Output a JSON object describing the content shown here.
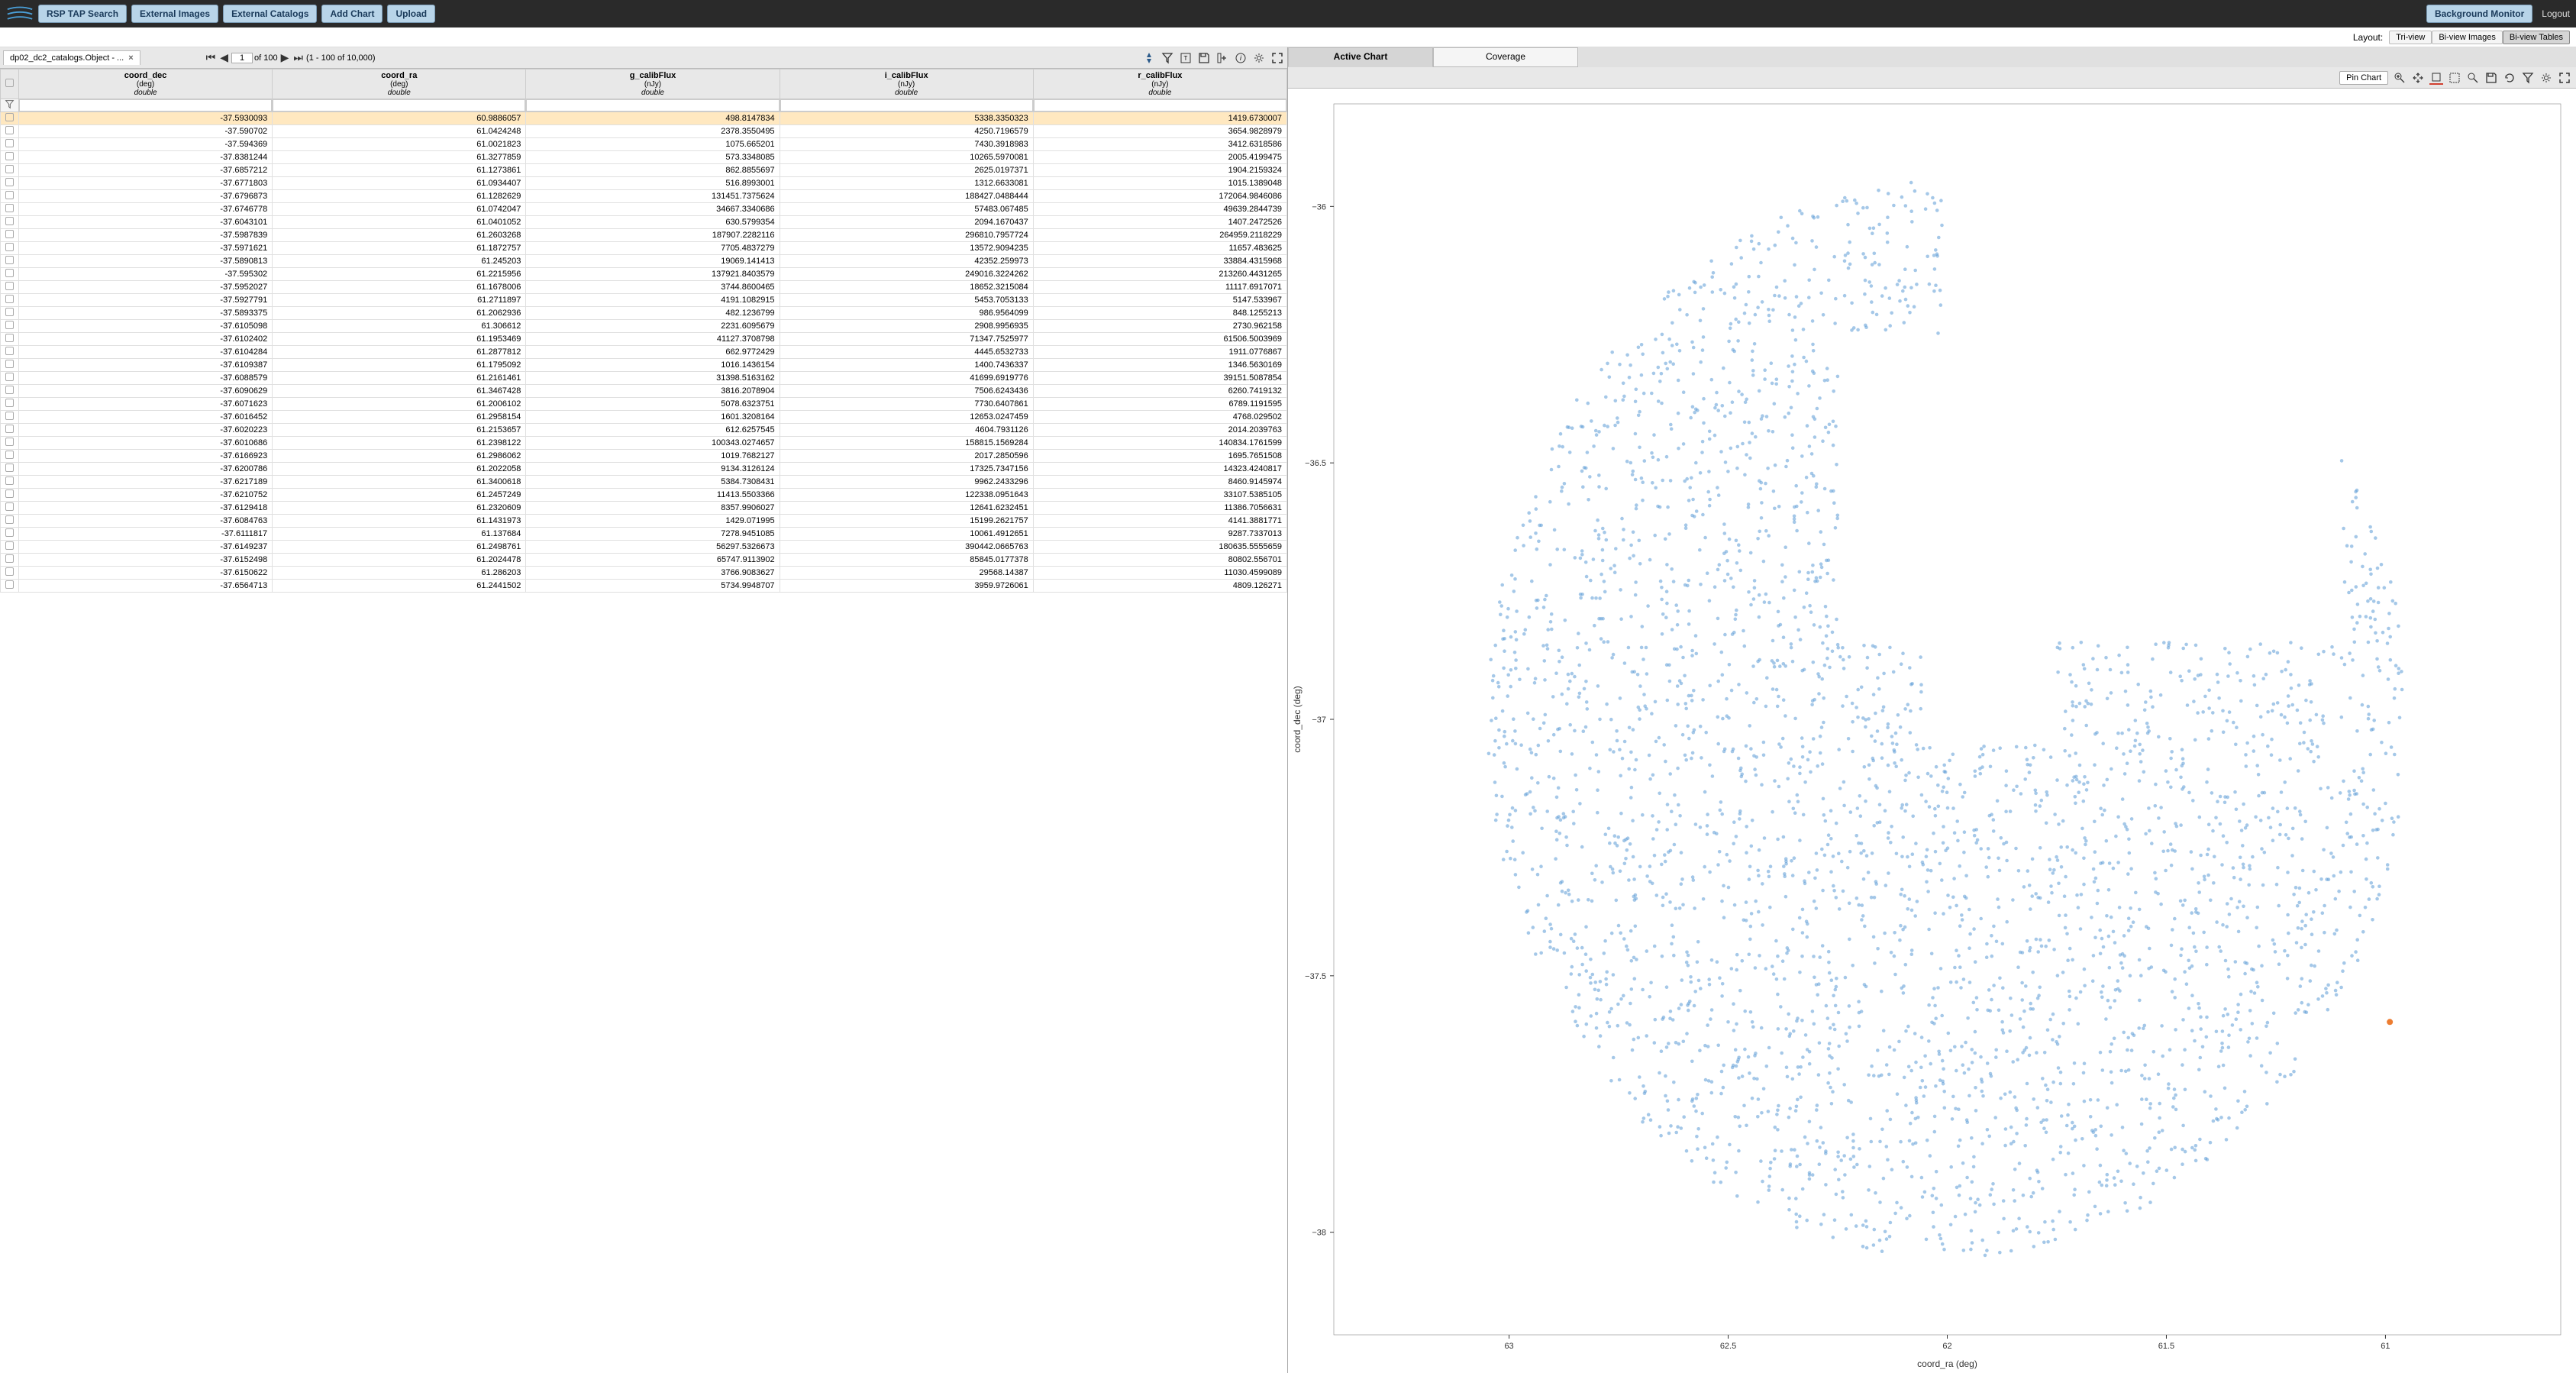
{
  "topbar": {
    "buttons": [
      "RSP TAP Search",
      "External Images",
      "External Catalogs",
      "Add Chart",
      "Upload"
    ],
    "bg_monitor": "Background Monitor",
    "logout": "Logout"
  },
  "layout": {
    "label": "Layout:",
    "options": [
      "Tri-view",
      "Bi-view Images",
      "Bi-view Tables"
    ],
    "active": 2
  },
  "table": {
    "tab_label": "dp02_dc2_catalogs.Object - ...",
    "pager": {
      "page": "1",
      "of": "of 100",
      "range": "(1 - 100 of 10,000)"
    },
    "columns": [
      {
        "name": "coord_dec",
        "unit": "(deg)",
        "dtype": "double"
      },
      {
        "name": "coord_ra",
        "unit": "(deg)",
        "dtype": "double"
      },
      {
        "name": "g_calibFlux",
        "unit": "(nJy)",
        "dtype": "double"
      },
      {
        "name": "i_calibFlux",
        "unit": "(nJy)",
        "dtype": "double"
      },
      {
        "name": "r_calibFlux",
        "unit": "(nJy)",
        "dtype": "double"
      }
    ],
    "rows": [
      [
        "-37.5930093",
        "60.9886057",
        "498.8147834",
        "5338.3350323",
        "1419.6730007"
      ],
      [
        "-37.590702",
        "61.0424248",
        "2378.3550495",
        "4250.7196579",
        "3654.9828979"
      ],
      [
        "-37.594369",
        "61.0021823",
        "1075.665201",
        "7430.3918983",
        "3412.6318586"
      ],
      [
        "-37.8381244",
        "61.3277859",
        "573.3348085",
        "10265.5970081",
        "2005.4199475"
      ],
      [
        "-37.6857212",
        "61.1273861",
        "862.8855697",
        "2625.0197371",
        "1904.2159324"
      ],
      [
        "-37.6771803",
        "61.0934407",
        "516.8993001",
        "1312.6633081",
        "1015.1389048"
      ],
      [
        "-37.6796873",
        "61.1282629",
        "131451.7375624",
        "188427.0488444",
        "172064.9846086"
      ],
      [
        "-37.6746778",
        "61.0742047",
        "34667.3340686",
        "57483.067485",
        "49639.2844739"
      ],
      [
        "-37.6043101",
        "61.0401052",
        "630.5799354",
        "2094.1670437",
        "1407.2472526"
      ],
      [
        "-37.5987839",
        "61.2603268",
        "187907.2282116",
        "296810.7957724",
        "264959.2118229"
      ],
      [
        "-37.5971621",
        "61.1872757",
        "7705.4837279",
        "13572.9094235",
        "11657.483625"
      ],
      [
        "-37.5890813",
        "61.245203",
        "19069.141413",
        "42352.259973",
        "33884.4315968"
      ],
      [
        "-37.595302",
        "61.2215956",
        "137921.8403579",
        "249016.3224262",
        "213260.4431265"
      ],
      [
        "-37.5952027",
        "61.1678006",
        "3744.8600465",
        "18652.3215084",
        "11117.6917071"
      ],
      [
        "-37.5927791",
        "61.2711897",
        "4191.1082915",
        "5453.7053133",
        "5147.533967"
      ],
      [
        "-37.5893375",
        "61.2062936",
        "482.1236799",
        "986.9564099",
        "848.1255213"
      ],
      [
        "-37.6105098",
        "61.306612",
        "2231.6095679",
        "2908.9956935",
        "2730.962158"
      ],
      [
        "-37.6102402",
        "61.1953469",
        "41127.3708798",
        "71347.7525977",
        "61506.5003969"
      ],
      [
        "-37.6104284",
        "61.2877812",
        "662.9772429",
        "4445.6532733",
        "1911.0776867"
      ],
      [
        "-37.6109387",
        "61.1795092",
        "1016.1436154",
        "1400.7436337",
        "1346.5630169"
      ],
      [
        "-37.6088579",
        "61.2161461",
        "31398.5163162",
        "41699.6919776",
        "39151.5087854"
      ],
      [
        "-37.6090629",
        "61.3467428",
        "3816.2078904",
        "7506.6243436",
        "6260.7419132"
      ],
      [
        "-37.6071623",
        "61.2006102",
        "5078.6323751",
        "7730.6407861",
        "6789.1191595"
      ],
      [
        "-37.6016452",
        "61.2958154",
        "1601.3208164",
        "12653.0247459",
        "4768.029502"
      ],
      [
        "-37.6020223",
        "61.2153657",
        "612.6257545",
        "4604.7931126",
        "2014.2039763"
      ],
      [
        "-37.6010686",
        "61.2398122",
        "100343.0274657",
        "158815.1569284",
        "140834.1761599"
      ],
      [
        "-37.6166923",
        "61.2986062",
        "1019.7682127",
        "2017.2850596",
        "1695.7651508"
      ],
      [
        "-37.6200786",
        "61.2022058",
        "9134.3126124",
        "17325.7347156",
        "14323.4240817"
      ],
      [
        "-37.6217189",
        "61.3400618",
        "5384.7308431",
        "9962.2433296",
        "8460.9145974"
      ],
      [
        "-37.6210752",
        "61.2457249",
        "11413.5503366",
        "122338.0951643",
        "33107.5385105"
      ],
      [
        "-37.6129418",
        "61.2320609",
        "8357.9906027",
        "12641.6232451",
        "11386.7056631"
      ],
      [
        "-37.6084763",
        "61.1431973",
        "1429.071995",
        "15199.2621757",
        "4141.3881771"
      ],
      [
        "-37.6111817",
        "61.137684",
        "7278.9451085",
        "10061.4912651",
        "9287.7337013"
      ],
      [
        "-37.6149237",
        "61.2498761",
        "56297.5326673",
        "390442.0665763",
        "180635.5555659"
      ],
      [
        "-37.6152498",
        "61.2024478",
        "65747.9113902",
        "85845.0177378",
        "80802.556701"
      ],
      [
        "-37.6150622",
        "61.286203",
        "3766.9083627",
        "29568.14387",
        "11030.4599089"
      ],
      [
        "-37.6564713",
        "61.2441502",
        "5734.9948707",
        "3959.9726061",
        "4809.126271"
      ]
    ],
    "selected_row": 0
  },
  "chart": {
    "tabs": [
      "Active Chart",
      "Coverage"
    ],
    "active_tab": 0,
    "pin_label": "Pin Chart",
    "type": "scatter",
    "xlabel": "coord_ra (deg)",
    "ylabel": "coord_dec (deg)",
    "xlim": [
      63.4,
      60.6
    ],
    "ylim": [
      -38.2,
      -35.8
    ],
    "xticks": [
      63,
      62.5,
      62,
      61.5,
      61
    ],
    "yticks": [
      -36,
      -36.5,
      -37,
      -37.5,
      -38
    ],
    "point_color": "#5b9bd5",
    "point_opacity": 0.55,
    "point_radius": 2.3,
    "highlight_color": "#ed7d31",
    "background": "#ffffff",
    "n_points": 3200,
    "cluster_center_ra": 62.0,
    "cluster_center_dec": -37.0,
    "cluster_radius_deg": 1.05,
    "hole1": {
      "ra_min": 61.1,
      "ra_max": 62.25,
      "dec_min": -36.85,
      "dec_max": -36.25
    },
    "hole2": {
      "ra_min": 61.75,
      "ra_max": 62.05,
      "dec_min": -37.05,
      "dec_max": -36.85
    },
    "hole3": {
      "ra_min": 61.0,
      "ra_max": 62.0,
      "dec_min": -36.25,
      "dec_max": -35.9
    },
    "highlight_point": {
      "ra": 60.99,
      "dec": -37.59
    }
  }
}
